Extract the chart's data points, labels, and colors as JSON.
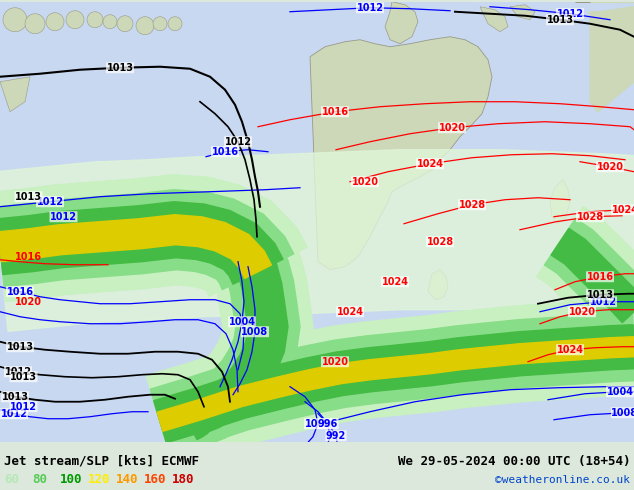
{
  "title_left": "Jet stream/SLP [kts] ECMWF",
  "title_right": "We 29-05-2024 00:00 UTC (18+54)",
  "credit": "©weatheronline.co.uk",
  "legend_values": [
    "60",
    "80",
    "100",
    "120",
    "140",
    "160",
    "180"
  ],
  "legend_colors": [
    "#b5e8b5",
    "#55cc55",
    "#009900",
    "#ffee00",
    "#ff9900",
    "#ff4400",
    "#cc0000"
  ],
  "bg_color": "#dce8dc",
  "ocean_color": "#c8d8f0",
  "land_color": "#d8e8c8",
  "title_font_size": 9,
  "credit_color": "#0044cc",
  "figsize": [
    6.34,
    4.9
  ],
  "dpi": 100
}
